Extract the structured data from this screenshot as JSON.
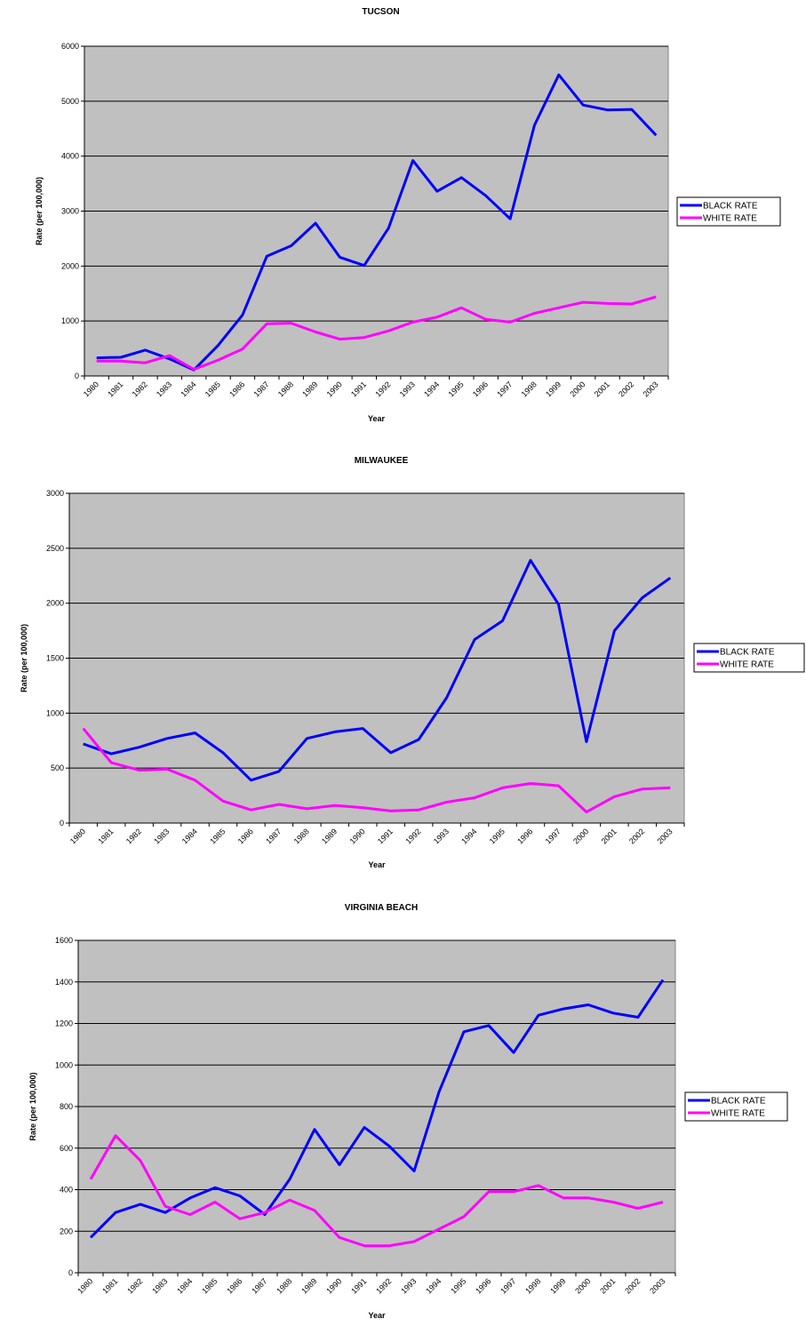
{
  "chart_data": [
    {
      "type": "line",
      "title": "TUCSON",
      "x_label": "Year",
      "y_label": "Rate (per 100,000)",
      "categories": [
        "1980",
        "1981",
        "1982",
        "1983",
        "1984",
        "1985",
        "1986",
        "1987",
        "1988",
        "1989",
        "1990",
        "1991",
        "1992",
        "1993",
        "1994",
        "1995",
        "1996",
        "1997",
        "1998",
        "1999",
        "2000",
        "2001",
        "2002",
        "2003"
      ],
      "series": [
        {
          "name": "BLACK RATE",
          "color": "#0000ff",
          "values": [
            330,
            340,
            470,
            310,
            110,
            560,
            1110,
            2180,
            2370,
            2780,
            2160,
            2010,
            2690,
            3920,
            3360,
            3610,
            3280,
            2860,
            4560,
            5480,
            4930,
            4840,
            4850,
            4380
          ]
        },
        {
          "name": "WHITE RATE",
          "color": "#ff00ff",
          "values": [
            270,
            270,
            240,
            370,
            120,
            290,
            490,
            950,
            960,
            800,
            670,
            700,
            820,
            980,
            1070,
            1240,
            1030,
            980,
            1140,
            1240,
            1340,
            1320,
            1310,
            1440
          ]
        }
      ],
      "ylim": [
        0,
        6000
      ],
      "yticks": [
        0,
        1000,
        2000,
        3000,
        4000,
        5000,
        6000
      ],
      "grid": true,
      "legend": "right",
      "plot_color": "#c0c0c0"
    },
    {
      "type": "line",
      "title": "MILWAUKEE",
      "x_label": "Year",
      "y_label": "Rate (per 100,000)",
      "categories": [
        "1980",
        "1981",
        "1982",
        "1983",
        "1984",
        "1985",
        "1986",
        "1987",
        "1988",
        "1989",
        "1990",
        "1991",
        "1992",
        "1993",
        "1994",
        "1995",
        "1996",
        "1997",
        "2000",
        "2001",
        "2002",
        "2003"
      ],
      "series": [
        {
          "name": "BLACK RATE",
          "color": "#0000ff",
          "values": [
            720,
            630,
            690,
            770,
            820,
            640,
            390,
            470,
            770,
            830,
            860,
            640,
            760,
            1140,
            1670,
            1840,
            2390,
            1990,
            740,
            1750,
            2050,
            2230
          ]
        },
        {
          "name": "WHITE RATE",
          "color": "#ff00ff",
          "values": [
            860,
            550,
            480,
            490,
            390,
            200,
            120,
            170,
            130,
            160,
            140,
            110,
            120,
            190,
            230,
            320,
            360,
            340,
            100,
            240,
            310,
            320
          ]
        }
      ],
      "ylim": [
        0,
        3000
      ],
      "yticks": [
        0,
        500,
        1000,
        1500,
        2000,
        2500,
        3000
      ],
      "grid": true,
      "legend": "right",
      "plot_color": "#c0c0c0"
    },
    {
      "type": "line",
      "title": "VIRGINIA BEACH",
      "x_label": "Year",
      "y_label": "Rate (per 100,000)",
      "categories": [
        "1980",
        "1981",
        "1982",
        "1983",
        "1984",
        "1985",
        "1986",
        "1987",
        "1988",
        "1989",
        "1990",
        "1991",
        "1992",
        "1993",
        "1994",
        "1995",
        "1996",
        "1997",
        "1998",
        "1999",
        "2000",
        "2001",
        "2002",
        "2003"
      ],
      "series": [
        {
          "name": "BLACK RATE",
          "color": "#0000ff",
          "values": [
            170,
            290,
            330,
            290,
            360,
            410,
            370,
            280,
            450,
            690,
            520,
            700,
            610,
            490,
            870,
            1160,
            1190,
            1060,
            1240,
            1270,
            1290,
            1250,
            1230,
            1410
          ]
        },
        {
          "name": "WHITE RATE",
          "color": "#ff00ff",
          "values": [
            450,
            660,
            540,
            320,
            280,
            340,
            260,
            290,
            350,
            300,
            170,
            130,
            130,
            150,
            210,
            270,
            390,
            390,
            420,
            360,
            360,
            340,
            310,
            340
          ]
        }
      ],
      "ylim": [
        0,
        1600
      ],
      "yticks": [
        0,
        200,
        400,
        600,
        800,
        1000,
        1200,
        1400,
        1600
      ],
      "grid": true,
      "legend": "right",
      "plot_color": "#c0c0c0"
    }
  ]
}
